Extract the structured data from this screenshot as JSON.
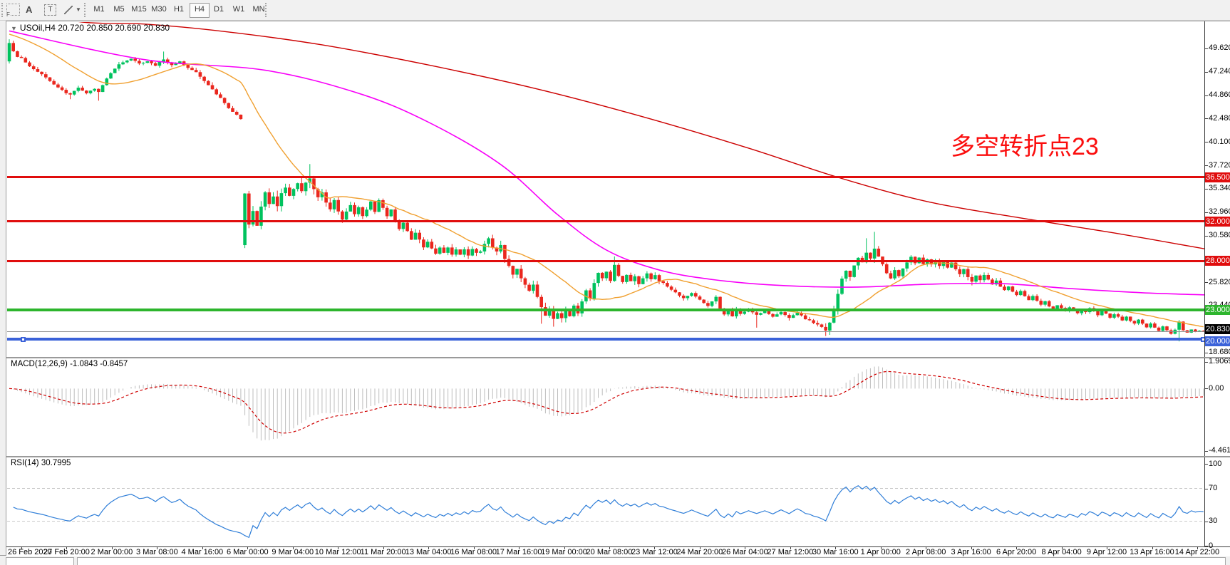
{
  "toolbar": {
    "tool_icons": [
      "fibo-grid",
      "text-annotation",
      "text-box",
      "cursor-tools"
    ],
    "timeframes": [
      "M1",
      "M5",
      "M15",
      "M30",
      "H1",
      "H4",
      "D1",
      "W1",
      "MN"
    ],
    "active_timeframe": "H4"
  },
  "chart": {
    "symbol_period": "USOil,H4",
    "ohlc_text": "20.720 20.850 20.690 20.830",
    "annotation": "多空转折点23",
    "annotation_color": "#fb0d0d",
    "price_axis_labels": [
      {
        "text": "49.620",
        "price": 49.62
      },
      {
        "text": "47.240",
        "price": 47.24
      },
      {
        "text": "44.860",
        "price": 44.86
      },
      {
        "text": "42.480",
        "price": 42.48
      },
      {
        "text": "40.100",
        "price": 40.1
      },
      {
        "text": "37.720",
        "price": 37.72
      },
      {
        "text": "35.340",
        "price": 35.34
      },
      {
        "text": "32.960",
        "price": 32.96
      },
      {
        "text": "30.580",
        "price": 30.58
      },
      {
        "text": "25.820",
        "price": 25.82
      },
      {
        "text": "23.440",
        "price": 23.44
      },
      {
        "text": "18.680",
        "price": 18.68
      }
    ],
    "badges": [
      {
        "text": "36.500",
        "price": 36.5,
        "color": "#e00d0d"
      },
      {
        "text": "32.000",
        "price": 32.0,
        "color": "#e00d0d"
      },
      {
        "text": "28.000",
        "price": 28.0,
        "color": "#e00d0d"
      },
      {
        "text": "23.000",
        "price": 23.0,
        "color": "#2db52d"
      },
      {
        "text": "20.830",
        "price": 20.83,
        "color": "#000000"
      },
      {
        "text": "20.000",
        "price": 20.0,
        "color": "#3b62d9"
      }
    ],
    "hlines": [
      {
        "price": 36.5,
        "color": "#e00d0d",
        "width": 3
      },
      {
        "price": 32.0,
        "color": "#e00d0d",
        "width": 3
      },
      {
        "price": 28.0,
        "color": "#e00d0d",
        "width": 3
      },
      {
        "price": 23.0,
        "color": "#2db52d",
        "width": 4
      },
      {
        "price": 20.0,
        "color": "#3b62d9",
        "width": 4
      }
    ],
    "current_price": 20.83,
    "date_labels": [
      "26 Feb 2020",
      "27 Feb 20:00",
      "2 Mar 00:00",
      "3 Mar 08:00",
      "4 Mar 16:00",
      "6 Mar 00:00",
      "9 Mar 04:00",
      "10 Mar 12:00",
      "11 Mar 20:00",
      "13 Mar 04:00",
      "16 Mar 08:00",
      "17 Mar 16:00",
      "19 Mar 00:00",
      "20 Mar 08:00",
      "23 Mar 12:00",
      "24 Mar 20:00",
      "26 Mar 04:00",
      "27 Mar 12:00",
      "30 Mar 16:00",
      "1 Apr 00:00",
      "2 Apr 08:00",
      "3 Apr 16:00",
      "6 Apr 20:00",
      "8 Apr 04:00",
      "9 Apr 12:00",
      "13 Apr 16:00",
      "14 Apr 22:00"
    ]
  },
  "chart_data": {
    "type": "candlestick",
    "symbol": "USOil",
    "timeframe": "H4",
    "bars": 295,
    "axis_price_range": [
      18.22,
      52.3
    ],
    "colors": {
      "bull": "#00c25e",
      "bear": "#ea271e",
      "ma_fast": "#f0a030",
      "ma_mid": "#f800f8",
      "ma_slow": "#cc0000",
      "macd_hist": "#bdbdbd",
      "macd_signal": "#cf0000",
      "rsi": "#2f7ed8"
    },
    "open_overrides": {
      "0": 48.3,
      "58": 29.6
    },
    "close_keyframes": [
      [
        0,
        50.2
      ],
      [
        1,
        49.3
      ],
      [
        2,
        48.8
      ],
      [
        3,
        48.6
      ],
      [
        5,
        47.8
      ],
      [
        8,
        47.0
      ],
      [
        11,
        46.0
      ],
      [
        14,
        45.1
      ],
      [
        15,
        44.9
      ],
      [
        17,
        45.6
      ],
      [
        19,
        45.1
      ],
      [
        21,
        45.5
      ],
      [
        22,
        45.2
      ],
      [
        24,
        46.6
      ],
      [
        27,
        48.0
      ],
      [
        30,
        48.6
      ],
      [
        32,
        48.1
      ],
      [
        34,
        48.3
      ],
      [
        36,
        47.9
      ],
      [
        38,
        48.5
      ],
      [
        40,
        47.9
      ],
      [
        42,
        48.3
      ],
      [
        44,
        47.6
      ],
      [
        46,
        47.2
      ],
      [
        48,
        46.3
      ],
      [
        50,
        45.4
      ],
      [
        52,
        44.6
      ],
      [
        54,
        43.5
      ],
      [
        56,
        42.9
      ],
      [
        57,
        42.4
      ],
      [
        58,
        34.8
      ],
      [
        59,
        31.8
      ],
      [
        60,
        33.0
      ],
      [
        61,
        31.5
      ],
      [
        62,
        33.5
      ],
      [
        63,
        35.0
      ],
      [
        64,
        33.8
      ],
      [
        65,
        34.5
      ],
      [
        66,
        33.5
      ],
      [
        67,
        34.8
      ],
      [
        68,
        35.5
      ],
      [
        69,
        34.6
      ],
      [
        70,
        35.2
      ],
      [
        71,
        35.8
      ],
      [
        72,
        35.0
      ],
      [
        73,
        36.0
      ],
      [
        74,
        36.3
      ],
      [
        75,
        35.2
      ],
      [
        76,
        34.4
      ],
      [
        77,
        35.0
      ],
      [
        78,
        34.0
      ],
      [
        79,
        33.3
      ],
      [
        80,
        34.2
      ],
      [
        81,
        33.0
      ],
      [
        82,
        32.2
      ],
      [
        83,
        33.0
      ],
      [
        84,
        33.6
      ],
      [
        85,
        32.8
      ],
      [
        86,
        33.4
      ],
      [
        87,
        32.6
      ],
      [
        88,
        33.2
      ],
      [
        89,
        34.0
      ],
      [
        90,
        33.0
      ],
      [
        91,
        34.2
      ],
      [
        92,
        33.4
      ],
      [
        93,
        32.5
      ],
      [
        94,
        33.2
      ],
      [
        95,
        32.0
      ],
      [
        96,
        31.2
      ],
      [
        97,
        31.9
      ],
      [
        98,
        31.0
      ],
      [
        99,
        30.2
      ],
      [
        100,
        30.9
      ],
      [
        101,
        30.1
      ],
      [
        102,
        29.4
      ],
      [
        103,
        30.0
      ],
      [
        104,
        29.3
      ],
      [
        105,
        28.8
      ],
      [
        106,
        29.4
      ],
      [
        107,
        28.8
      ],
      [
        108,
        29.3
      ],
      [
        109,
        28.7
      ],
      [
        110,
        29.2
      ],
      [
        111,
        28.6
      ],
      [
        112,
        29.1
      ],
      [
        113,
        28.6
      ],
      [
        114,
        29.2
      ],
      [
        115,
        28.8
      ],
      [
        116,
        28.9
      ],
      [
        117,
        29.8
      ],
      [
        118,
        30.2
      ],
      [
        119,
        29.4
      ],
      [
        120,
        29.0
      ],
      [
        121,
        29.6
      ],
      [
        122,
        28.2
      ],
      [
        123,
        27.4
      ],
      [
        124,
        26.6
      ],
      [
        125,
        27.2
      ],
      [
        126,
        26.3
      ],
      [
        127,
        25.6
      ],
      [
        128,
        24.9
      ],
      [
        129,
        25.5
      ],
      [
        130,
        24.3
      ],
      [
        131,
        23.2
      ],
      [
        132,
        22.4
      ],
      [
        133,
        23.0
      ],
      [
        134,
        22.0
      ],
      [
        135,
        22.6
      ],
      [
        136,
        22.2
      ],
      [
        137,
        22.8
      ],
      [
        138,
        22.3
      ],
      [
        139,
        23.4
      ],
      [
        140,
        22.6
      ],
      [
        141,
        23.8
      ],
      [
        142,
        25.0
      ],
      [
        143,
        24.2
      ],
      [
        144,
        25.8
      ],
      [
        145,
        26.8
      ],
      [
        146,
        26.2
      ],
      [
        147,
        26.9
      ],
      [
        148,
        26.0
      ],
      [
        149,
        27.6
      ],
      [
        150,
        26.5
      ],
      [
        151,
        25.8
      ],
      [
        152,
        26.6
      ],
      [
        153,
        25.9
      ],
      [
        154,
        26.4
      ],
      [
        155,
        25.7
      ],
      [
        156,
        26.2
      ],
      [
        157,
        26.7
      ],
      [
        158,
        26.1
      ],
      [
        159,
        26.6
      ],
      [
        160,
        26.0
      ],
      [
        162,
        25.4
      ],
      [
        164,
        24.8
      ],
      [
        166,
        24.2
      ],
      [
        168,
        24.7
      ],
      [
        170,
        24.0
      ],
      [
        172,
        23.4
      ],
      [
        174,
        24.3
      ],
      [
        175,
        23.2
      ],
      [
        176,
        22.5
      ],
      [
        177,
        23.0
      ],
      [
        178,
        22.4
      ],
      [
        179,
        23.1
      ],
      [
        180,
        22.6
      ],
      [
        182,
        23.1
      ],
      [
        184,
        22.5
      ],
      [
        186,
        22.9
      ],
      [
        188,
        22.3
      ],
      [
        190,
        22.8
      ],
      [
        192,
        22.2
      ],
      [
        194,
        22.7
      ],
      [
        196,
        22.1
      ],
      [
        198,
        21.7
      ],
      [
        200,
        21.3
      ],
      [
        201,
        21.0
      ],
      [
        202,
        21.8
      ],
      [
        203,
        23.0
      ],
      [
        204,
        24.6
      ],
      [
        205,
        26.2
      ],
      [
        206,
        27.0
      ],
      [
        207,
        26.4
      ],
      [
        208,
        27.6
      ],
      [
        209,
        28.4
      ],
      [
        210,
        27.8
      ],
      [
        211,
        28.9
      ],
      [
        212,
        28.2
      ],
      [
        213,
        29.3
      ],
      [
        214,
        28.4
      ],
      [
        215,
        27.6
      ],
      [
        216,
        26.8
      ],
      [
        217,
        26.2
      ],
      [
        218,
        27.0
      ],
      [
        219,
        26.4
      ],
      [
        220,
        27.2
      ],
      [
        221,
        27.9
      ],
      [
        222,
        28.4
      ],
      [
        223,
        27.8
      ],
      [
        224,
        28.3
      ],
      [
        225,
        27.7
      ],
      [
        226,
        28.2
      ],
      [
        227,
        27.6
      ],
      [
        228,
        28.1
      ],
      [
        229,
        27.5
      ],
      [
        230,
        27.9
      ],
      [
        231,
        27.3
      ],
      [
        232,
        27.8
      ],
      [
        233,
        27.2
      ],
      [
        234,
        26.6
      ],
      [
        235,
        27.1
      ],
      [
        236,
        26.4
      ],
      [
        237,
        25.9
      ],
      [
        238,
        26.5
      ],
      [
        239,
        26.0
      ],
      [
        240,
        26.6
      ],
      [
        241,
        26.1
      ],
      [
        242,
        25.6
      ],
      [
        243,
        26.0
      ],
      [
        244,
        25.4
      ],
      [
        245,
        25.0
      ],
      [
        246,
        25.4
      ],
      [
        247,
        24.9
      ],
      [
        248,
        24.5
      ],
      [
        249,
        24.9
      ],
      [
        250,
        24.4
      ],
      [
        251,
        24.0
      ],
      [
        252,
        24.4
      ],
      [
        253,
        23.9
      ],
      [
        254,
        23.5
      ],
      [
        255,
        23.9
      ],
      [
        256,
        23.4
      ],
      [
        257,
        23.1
      ],
      [
        258,
        23.5
      ],
      [
        259,
        23.2
      ],
      [
        260,
        22.9
      ],
      [
        261,
        23.3
      ],
      [
        262,
        23.0
      ],
      [
        263,
        22.7
      ],
      [
        264,
        23.1
      ],
      [
        265,
        22.8
      ],
      [
        266,
        23.2
      ],
      [
        267,
        22.9
      ],
      [
        268,
        22.5
      ],
      [
        269,
        22.9
      ],
      [
        270,
        22.6
      ],
      [
        271,
        22.2
      ],
      [
        272,
        22.6
      ],
      [
        273,
        22.3
      ],
      [
        274,
        21.9
      ],
      [
        275,
        22.3
      ],
      [
        276,
        21.9
      ],
      [
        277,
        21.6
      ],
      [
        278,
        22.0
      ],
      [
        279,
        21.6
      ],
      [
        280,
        21.2
      ],
      [
        281,
        21.6
      ],
      [
        282,
        21.2
      ],
      [
        283,
        20.9
      ],
      [
        284,
        21.3
      ],
      [
        285,
        20.9
      ],
      [
        286,
        20.6
      ],
      [
        287,
        21.0
      ],
      [
        288,
        21.8
      ],
      [
        289,
        20.9
      ],
      [
        290,
        20.7
      ],
      [
        291,
        21.0
      ],
      [
        292,
        20.8
      ],
      [
        293,
        20.9
      ],
      [
        294,
        20.83
      ]
    ],
    "spikes": [
      [
        0,
        "h",
        50.55
      ],
      [
        15,
        "l",
        44.45
      ],
      [
        22,
        "l",
        44.3
      ],
      [
        38,
        "h",
        49.3
      ],
      [
        58,
        "l",
        29.3
      ],
      [
        74,
        "h",
        37.85
      ],
      [
        131,
        "l",
        21.6
      ],
      [
        134,
        "l",
        21.3
      ],
      [
        149,
        "h",
        28.45
      ],
      [
        184,
        "l",
        21.2
      ],
      [
        201,
        "l",
        20.35
      ],
      [
        211,
        "h",
        30.3
      ],
      [
        213,
        "h",
        30.95
      ],
      [
        237,
        "l",
        25.5
      ],
      [
        288,
        "l",
        19.8
      ]
    ],
    "volatility_keyframes": [
      [
        0,
        0.45
      ],
      [
        50,
        0.55
      ],
      [
        58,
        1.1
      ],
      [
        81,
        0.7
      ],
      [
        117,
        0.85
      ],
      [
        141,
        0.7
      ],
      [
        161,
        0.5
      ],
      [
        201,
        0.9
      ],
      [
        216,
        0.6
      ],
      [
        245,
        0.38
      ],
      [
        276,
        0.3
      ],
      [
        290,
        0.15
      ]
    ],
    "ma_slow_red": [
      [
        0,
        53.6
      ],
      [
        18,
        52.3
      ],
      [
        34,
        52.08
      ],
      [
        54,
        51.29
      ],
      [
        77,
        49.98
      ],
      [
        103,
        47.95
      ],
      [
        130,
        45.49
      ],
      [
        156,
        42.66
      ],
      [
        182,
        39.47
      ],
      [
        204,
        36.5
      ],
      [
        226,
        34.03
      ],
      [
        249,
        32.36
      ],
      [
        272,
        30.84
      ],
      [
        295,
        29.17
      ]
    ],
    "ma_mid_magenta": [
      [
        0,
        51.4
      ],
      [
        33,
        48.5
      ],
      [
        63,
        47.4
      ],
      [
        86,
        45.05
      ],
      [
        103,
        42.15
      ],
      [
        121,
        37.8
      ],
      [
        135,
        32.7
      ],
      [
        147,
        29.1
      ],
      [
        160,
        27.07
      ],
      [
        174,
        26.05
      ],
      [
        191,
        25.47
      ],
      [
        209,
        25.33
      ],
      [
        226,
        25.62
      ],
      [
        244,
        25.69
      ],
      [
        261,
        25.18
      ],
      [
        279,
        24.75
      ],
      [
        295,
        24.53
      ]
    ],
    "ma_fast_period": 21,
    "indicators": {
      "macd": {
        "label": "MACD(12,26,9)",
        "values": "-1.0843 -0.8457",
        "scale_max": "1.9069",
        "scale_zero": "0.00",
        "scale_min": "-4.4614",
        "fast": 12,
        "slow": 26,
        "signal": 9
      },
      "rsi": {
        "label": "RSI(14)",
        "value": "30.7995",
        "period": 14,
        "scale_labels": [
          "100",
          "70",
          "30",
          "0"
        ],
        "levels": [
          70,
          30
        ]
      }
    }
  }
}
